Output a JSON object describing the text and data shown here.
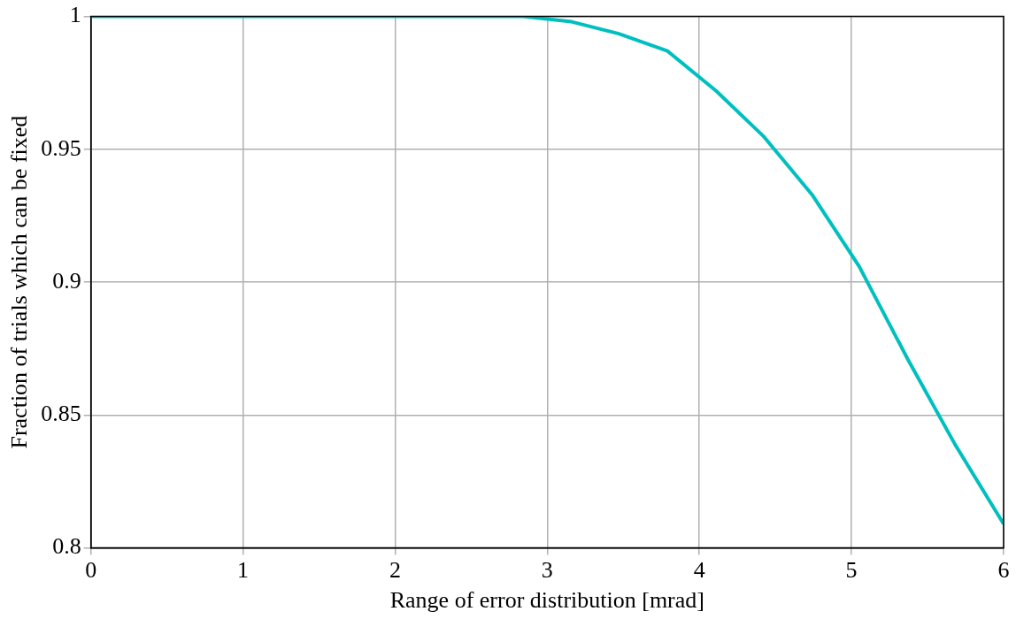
{
  "chart_data": {
    "type": "line",
    "xlabel": "Range of error distribution [mrad]",
    "ylabel": "Fraction of trials which can be fixed",
    "x": [
      0,
      0.32,
      0.63,
      0.95,
      1.26,
      1.58,
      1.89,
      2.21,
      2.53,
      2.84,
      3.16,
      3.47,
      3.79,
      4.11,
      4.42,
      4.74,
      5.05,
      5.37,
      5.68,
      6
    ],
    "series": [
      {
        "color": "#00bfbf",
        "values": [
          1,
          1,
          1,
          1,
          1,
          1,
          1,
          1,
          1,
          1,
          0.998,
          0.9935,
          0.987,
          0.972,
          0.955,
          0.933,
          0.906,
          0.871,
          0.839,
          0.809
        ]
      }
    ],
    "xlim": [
      0,
      6
    ],
    "xticks": [
      0,
      1,
      2,
      3,
      4,
      5,
      6
    ],
    "ylim": [
      0.8,
      1
    ],
    "yticks": [
      0.8,
      0.85,
      0.9,
      0.95,
      1
    ],
    "grid": true,
    "marker": "none",
    "line_style": "solid",
    "legend": false
  }
}
